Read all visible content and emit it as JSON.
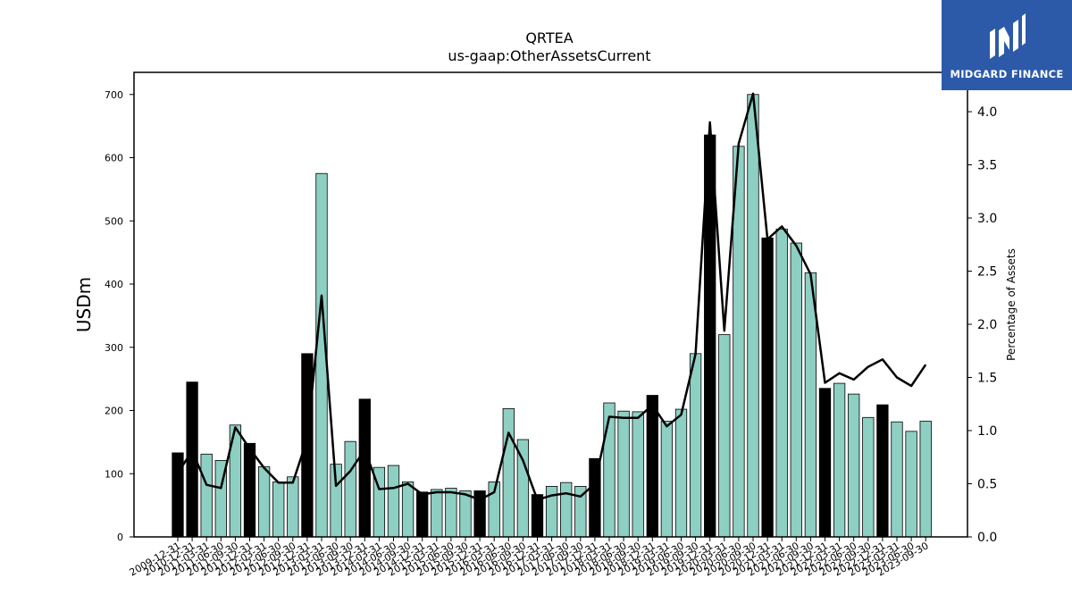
{
  "brand": {
    "name": "MIDGARD FINANCE",
    "icon": "midgard-logo-icon",
    "color": "#2c5aa8"
  },
  "chart_data": {
    "type": "bar",
    "title": "QRTEA",
    "subtitle": "us-gaap:OtherAssetsCurrent",
    "ylabel": "USDm",
    "y2label": "Percentage of Assets",
    "ylim": [
      0,
      735
    ],
    "y2lim": [
      0,
      4.37
    ],
    "yticks": [
      "0",
      "100",
      "200",
      "300",
      "400",
      "500",
      "600",
      "700"
    ],
    "y2ticks": [
      "0.0",
      "0.5",
      "1.0",
      "1.5",
      "2.0",
      "2.5",
      "3.0",
      "3.5",
      "4.0"
    ],
    "colors": {
      "annual": "#000000",
      "quarterly": "#8ecfc3",
      "line": "#000000"
    },
    "categories": [
      "2009-12-31",
      "2010-12-31",
      "2011-03-31",
      "2011-06-30",
      "2011-09-30",
      "2011-12-31",
      "2012-03-31",
      "2012-06-30",
      "2012-09-30",
      "2012-12-31",
      "2013-03-31",
      "2013-06-30",
      "2013-09-30",
      "2013-12-31",
      "2014-03-31",
      "2014-06-30",
      "2014-09-30",
      "2014-12-31",
      "2015-03-31",
      "2015-06-30",
      "2015-09-30",
      "2015-12-31",
      "2016-03-31",
      "2016-06-30",
      "2016-09-30",
      "2016-12-31",
      "2017-03-31",
      "2017-06-30",
      "2017-09-30",
      "2017-12-31",
      "2018-03-31",
      "2018-06-30",
      "2018-09-30",
      "2018-12-31",
      "2019-03-31",
      "2019-06-30",
      "2019-09-30",
      "2019-12-31",
      "2020-03-31",
      "2020-06-30",
      "2020-09-30",
      "2020-12-31",
      "2021-03-31",
      "2021-06-30",
      "2021-09-30",
      "2021-12-31",
      "2022-03-31",
      "2022-06-30",
      "2022-09-30",
      "2022-12-31",
      "2023-03-31",
      "2023-06-30",
      "2023-09-30"
    ],
    "xtick_labels": [
      "2009-12-31",
      "2010-12-31",
      "2011-03-31",
      "2011-06-30",
      "2011-09-30",
      "2011-12-31",
      "2012-03-31",
      "2012-06-30",
      "2012-09-30",
      "2012-12-31",
      "2013-03-31",
      "2013-06-30",
      "2013-09-30",
      "2013-12-31",
      "2014-03-31",
      "2014-06-30",
      "2014-09-30",
      "2014-12-31",
      "2015-03-31",
      "2015-06-30",
      "2015-09-30",
      "2015-12-31",
      "2016-03-31",
      "2016-06-30",
      "2016-09-30",
      "2016-12-31",
      "2017-03-31",
      "2017-06-30",
      "2017-09-30",
      "2017-12-31",
      "2018-03-31",
      "2018-06-30",
      "2018-09-30",
      "2018-12-31",
      "2019-03-31",
      "2019-06-30",
      "2019-09-30",
      "2019-12-31",
      "2020-03-31",
      "2020-06-30",
      "2020-09-30",
      "2020-12-31",
      "2021-03-31",
      "2021-06-30",
      "2021-09-30",
      "2021-12-31",
      "2022-03-31",
      "2022-06-30",
      "2022-09-30",
      "2022-12-31",
      "2023-03-31",
      "2023-06-30",
      "2023-09-30"
    ],
    "annual": [
      true,
      true,
      false,
      false,
      false,
      true,
      false,
      false,
      false,
      true,
      false,
      false,
      false,
      true,
      false,
      false,
      false,
      true,
      false,
      false,
      false,
      true,
      false,
      false,
      false,
      true,
      false,
      false,
      false,
      true,
      false,
      false,
      false,
      true,
      false,
      false,
      false,
      true,
      false,
      false,
      false,
      true,
      false,
      false,
      false,
      true,
      false,
      false,
      false,
      true,
      false,
      false,
      false
    ],
    "series": [
      {
        "type": "bar",
        "values": [
          133,
          245,
          131,
          121,
          177,
          148,
          111,
          87,
          95,
          290,
          575,
          115,
          151,
          218,
          110,
          113,
          87,
          71,
          75,
          77,
          73,
          73,
          87,
          203,
          154,
          67,
          80,
          86,
          80,
          124,
          212,
          199,
          198,
          224,
          183,
          202,
          290,
          636,
          320,
          618,
          700,
          473,
          487,
          465,
          418,
          235,
          243,
          226,
          189,
          209,
          182,
          167,
          183
        ]
      },
      {
        "type": "line",
        "axis": "right",
        "values": [
          0.6,
          0.81,
          0.49,
          0.46,
          1.03,
          0.83,
          0.65,
          0.51,
          0.51,
          0.92,
          2.27,
          0.48,
          0.62,
          0.82,
          0.45,
          0.46,
          0.5,
          0.4,
          0.42,
          0.42,
          0.4,
          0.35,
          0.42,
          0.98,
          0.72,
          0.35,
          0.39,
          0.41,
          0.38,
          0.5,
          1.13,
          1.12,
          1.12,
          1.24,
          1.04,
          1.15,
          1.72,
          3.9,
          1.94,
          3.7,
          4.17,
          2.8,
          2.92,
          2.74,
          2.47,
          1.45,
          1.54,
          1.48,
          1.6,
          1.67,
          1.5,
          1.42,
          1.62
        ]
      }
    ]
  }
}
